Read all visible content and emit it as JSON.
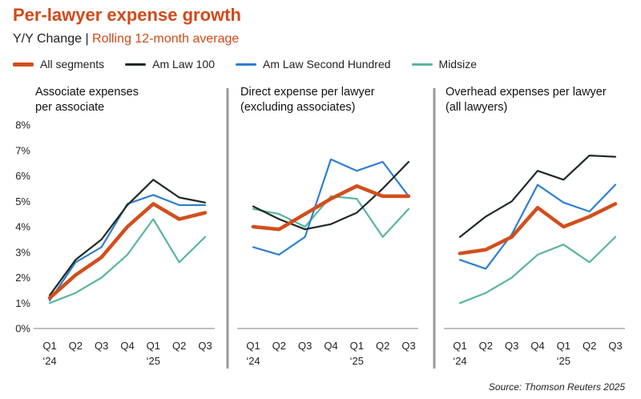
{
  "title": "Per-lawyer expense growth",
  "subtitle_part1": "Y/Y Change |",
  "subtitle_part2": "Rolling 12-month average",
  "source": "Source: Thomson Reuters 2025",
  "colors": {
    "title": "#d04a1a",
    "subtitle_accent": "#d04a1a",
    "all_segments": "#d24e1c",
    "am_law_100": "#1f2a24",
    "second_hundred": "#2f7fd0",
    "midsize": "#5ab5a0",
    "divider": "#9a9a9a",
    "gridline": "#cccccc"
  },
  "legend": [
    {
      "key": "all",
      "label": "All segments"
    },
    {
      "key": "al100",
      "label": "Am Law 100"
    },
    {
      "key": "al200",
      "label": "Am Law Second Hundred"
    },
    {
      "key": "mid",
      "label": "Midsize"
    }
  ],
  "panels": [
    {
      "title_line1": "Associate expenses",
      "title_line2": "per associate"
    },
    {
      "title_line1": "Direct expense per lawyer",
      "title_line2": "(excluding associates)"
    },
    {
      "title_line1": "Overhead expenses per lawyer",
      "title_line2": "(all lawyers)"
    }
  ],
  "chart_data": [
    {
      "type": "line",
      "title": "Associate expenses per associate",
      "categories": [
        "Q1 '24",
        "Q2",
        "Q3",
        "Q4",
        "Q1 '25",
        "Q2",
        "Q3"
      ],
      "ylim": [
        0,
        8
      ],
      "yticks": [
        "0%",
        "1%",
        "2%",
        "3%",
        "4%",
        "5%",
        "6%",
        "7%",
        "8%"
      ],
      "series": [
        {
          "key": "mid",
          "name": "Midsize",
          "values": [
            1.0,
            1.4,
            2.0,
            2.9,
            4.3,
            2.6,
            3.6
          ]
        },
        {
          "key": "al200",
          "name": "Am Law Second Hundred",
          "values": [
            1.1,
            2.6,
            3.2,
            4.9,
            5.25,
            4.85,
            4.85
          ]
        },
        {
          "key": "al100",
          "name": "Am Law 100",
          "values": [
            1.3,
            2.7,
            3.5,
            4.85,
            5.85,
            5.15,
            4.95
          ]
        },
        {
          "key": "all",
          "name": "All segments",
          "values": [
            1.2,
            2.1,
            2.8,
            4.0,
            4.9,
            4.3,
            4.55
          ]
        }
      ]
    },
    {
      "type": "line",
      "title": "Direct expense per lawyer (excluding associates)",
      "categories": [
        "Q1 '24",
        "Q2",
        "Q3",
        "Q4",
        "Q1 '25",
        "Q2",
        "Q3"
      ],
      "ylim": [
        0,
        8
      ],
      "series": [
        {
          "key": "mid",
          "name": "Midsize",
          "values": [
            4.7,
            4.5,
            4.0,
            5.2,
            5.1,
            3.6,
            4.7
          ]
        },
        {
          "key": "al200",
          "name": "Am Law Second Hundred",
          "values": [
            3.2,
            2.9,
            3.6,
            6.65,
            6.2,
            6.55,
            5.2
          ]
        },
        {
          "key": "al100",
          "name": "Am Law 100",
          "values": [
            4.8,
            4.3,
            3.9,
            4.1,
            4.55,
            5.5,
            6.55
          ]
        },
        {
          "key": "all",
          "name": "All segments",
          "values": [
            4.0,
            3.9,
            4.5,
            5.1,
            5.6,
            5.2,
            5.2
          ]
        }
      ]
    },
    {
      "type": "line",
      "title": "Overhead expenses per lawyer (all lawyers)",
      "categories": [
        "Q1 '24",
        "Q2",
        "Q3",
        "Q4",
        "Q1 '25",
        "Q2",
        "Q3"
      ],
      "ylim": [
        0,
        8
      ],
      "series": [
        {
          "key": "mid",
          "name": "Midsize",
          "values": [
            1.0,
            1.4,
            2.0,
            2.9,
            3.3,
            2.6,
            3.6
          ]
        },
        {
          "key": "al200",
          "name": "Am Law Second Hundred",
          "values": [
            2.7,
            2.35,
            3.7,
            5.65,
            4.95,
            4.6,
            5.65
          ]
        },
        {
          "key": "al100",
          "name": "Am Law 100",
          "values": [
            3.6,
            4.4,
            5.0,
            6.2,
            5.85,
            6.8,
            6.75
          ]
        },
        {
          "key": "all",
          "name": "All segments",
          "values": [
            2.95,
            3.1,
            3.6,
            4.75,
            4.0,
            4.4,
            4.9
          ]
        }
      ]
    }
  ],
  "x_ticks": [
    {
      "line1": "Q1",
      "line2": "‘24"
    },
    {
      "line1": "Q2",
      "line2": ""
    },
    {
      "line1": "Q3",
      "line2": ""
    },
    {
      "line1": "Q4",
      "line2": ""
    },
    {
      "line1": "Q1",
      "line2": "‘25"
    },
    {
      "line1": "Q2",
      "line2": ""
    },
    {
      "line1": "Q3",
      "line2": ""
    }
  ]
}
